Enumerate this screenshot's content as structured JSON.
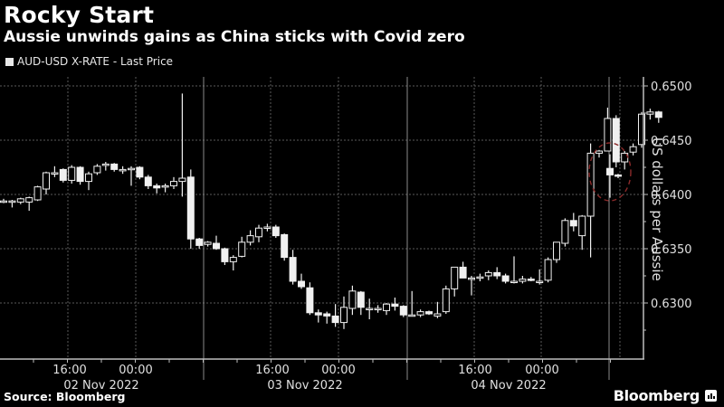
{
  "header": {
    "title": "Rocky Start",
    "subtitle": "Aussie unwinds gains as China sticks with Covid zero"
  },
  "legend": {
    "label": "AUD-USD X-RATE - Last Price",
    "swatch_color": "#e8e8e8"
  },
  "footer": {
    "source": "Source: Bloomberg",
    "brand": "Bloomberg"
  },
  "colors": {
    "background": "#000000",
    "candle": "#f0f0f0",
    "grid": "#5a5a5a",
    "axis": "#bdbdbd",
    "annotation_circle": "#8b2a2a"
  },
  "chart_data": {
    "type": "candlestick",
    "title": "Rocky Start",
    "subtitle": "Aussie unwinds gains as China sticks with Covid zero",
    "series_name": "AUD-USD X-RATE - Last Price",
    "ylabel": "US dollars per Aussie",
    "xlabel": "",
    "ylim": [
      0.6255,
      0.6515
    ],
    "yticks": [
      "0.6500",
      "0.6450",
      "0.6400",
      "0.6350",
      "0.6300"
    ],
    "xticks": [
      {
        "label": "16:00",
        "date": "02 Nov 2022"
      },
      {
        "label": "00:00",
        "date": "02 Nov 2022"
      },
      {
        "label": "16:00",
        "date": "03 Nov 2022"
      },
      {
        "label": "00:00",
        "date": "03 Nov 2022"
      },
      {
        "label": "16:00",
        "date": "04 Nov 2022"
      },
      {
        "label": "00:00",
        "date": "04 Nov 2022"
      }
    ],
    "date_labels": [
      "02 Nov 2022",
      "03 Nov 2022",
      "04 Nov 2022"
    ],
    "grid": true,
    "interval": "hourly",
    "annotation": "dashed red circle around latest candles near 0.6415",
    "candles": [
      [
        0.6394,
        0.6396,
        0.6392,
        0.6394
      ],
      [
        0.6394,
        0.6395,
        0.6388,
        0.6394
      ],
      [
        0.6393,
        0.6397,
        0.6391,
        0.6396
      ],
      [
        0.6393,
        0.6398,
        0.6385,
        0.6397
      ],
      [
        0.6395,
        0.6408,
        0.6394,
        0.6407
      ],
      [
        0.6405,
        0.6421,
        0.64,
        0.642
      ],
      [
        0.642,
        0.6426,
        0.6416,
        0.642
      ],
      [
        0.6423,
        0.6424,
        0.6411,
        0.6413
      ],
      [
        0.6413,
        0.6427,
        0.641,
        0.6425
      ],
      [
        0.6425,
        0.6426,
        0.6409,
        0.6412
      ],
      [
        0.6412,
        0.6421,
        0.6404,
        0.6419
      ],
      [
        0.642,
        0.6428,
        0.6418,
        0.6426
      ],
      [
        0.6427,
        0.643,
        0.6422,
        0.6428
      ],
      [
        0.6428,
        0.6429,
        0.6421,
        0.6423
      ],
      [
        0.6423,
        0.6426,
        0.6419,
        0.6423
      ],
      [
        0.6423,
        0.6426,
        0.6408,
        0.6424
      ],
      [
        0.6425,
        0.6426,
        0.6414,
        0.6416
      ],
      [
        0.6416,
        0.6418,
        0.6405,
        0.6408
      ],
      [
        0.6408,
        0.641,
        0.6401,
        0.6406
      ],
      [
        0.6408,
        0.641,
        0.6402,
        0.6408
      ],
      [
        0.6408,
        0.6416,
        0.6405,
        0.6412
      ],
      [
        0.6412,
        0.6493,
        0.6398,
        0.6415
      ],
      [
        0.6416,
        0.6423,
        0.635,
        0.6359
      ],
      [
        0.6359,
        0.636,
        0.635,
        0.6353
      ],
      [
        0.6354,
        0.6357,
        0.6352,
        0.6356
      ],
      [
        0.6355,
        0.6362,
        0.6349,
        0.635
      ],
      [
        0.635,
        0.6351,
        0.6335,
        0.6338
      ],
      [
        0.6338,
        0.6344,
        0.633,
        0.6342
      ],
      [
        0.6343,
        0.6361,
        0.6342,
        0.6356
      ],
      [
        0.6356,
        0.6367,
        0.6353,
        0.6362
      ],
      [
        0.6361,
        0.6372,
        0.6356,
        0.6369
      ],
      [
        0.6369,
        0.6373,
        0.6366,
        0.637
      ],
      [
        0.637,
        0.6372,
        0.636,
        0.6362
      ],
      [
        0.6363,
        0.6364,
        0.6339,
        0.6342
      ],
      [
        0.6342,
        0.6349,
        0.6317,
        0.632
      ],
      [
        0.632,
        0.6327,
        0.6313,
        0.6315
      ],
      [
        0.6314,
        0.6319,
        0.6289,
        0.6291
      ],
      [
        0.6291,
        0.6294,
        0.6282,
        0.6289
      ],
      [
        0.629,
        0.6292,
        0.6281,
        0.6288
      ],
      [
        0.6288,
        0.6299,
        0.6278,
        0.6282
      ],
      [
        0.6282,
        0.6306,
        0.6276,
        0.6296
      ],
      [
        0.6295,
        0.6316,
        0.6289,
        0.6311
      ],
      [
        0.631,
        0.6311,
        0.6289,
        0.6296
      ],
      [
        0.6295,
        0.6304,
        0.6285,
        0.6295
      ],
      [
        0.6295,
        0.6298,
        0.6291,
        0.6295
      ],
      [
        0.6293,
        0.63,
        0.6289,
        0.6299
      ],
      [
        0.6299,
        0.6305,
        0.6293,
        0.6297
      ],
      [
        0.6297,
        0.6298,
        0.6287,
        0.6289
      ],
      [
        0.6289,
        0.6311,
        0.6288,
        0.6289
      ],
      [
        0.6289,
        0.6294,
        0.6287,
        0.6292
      ],
      [
        0.6292,
        0.6293,
        0.6289,
        0.629
      ],
      [
        0.6288,
        0.6301,
        0.6286,
        0.629
      ],
      [
        0.6292,
        0.6316,
        0.629,
        0.6313
      ],
      [
        0.6313,
        0.6333,
        0.6306,
        0.6333
      ],
      [
        0.6333,
        0.6338,
        0.6326,
        0.6323
      ],
      [
        0.6323,
        0.6325,
        0.6307,
        0.6323
      ],
      [
        0.6323,
        0.6327,
        0.632,
        0.6324
      ],
      [
        0.6325,
        0.633,
        0.6321,
        0.6328
      ],
      [
        0.6328,
        0.6333,
        0.6322,
        0.6325
      ],
      [
        0.6325,
        0.6327,
        0.6318,
        0.632
      ],
      [
        0.632,
        0.6343,
        0.6318,
        0.632
      ],
      [
        0.632,
        0.6325,
        0.6318,
        0.6322
      ],
      [
        0.6322,
        0.6324,
        0.632,
        0.6321
      ],
      [
        0.632,
        0.6331,
        0.6317,
        0.632
      ],
      [
        0.6321,
        0.6342,
        0.6319,
        0.634
      ],
      [
        0.634,
        0.6356,
        0.6337,
        0.6356
      ],
      [
        0.6355,
        0.6378,
        0.6352,
        0.6376
      ],
      [
        0.6376,
        0.6383,
        0.6366,
        0.6371
      ],
      [
        0.6362,
        0.6381,
        0.6349,
        0.638
      ],
      [
        0.638,
        0.6447,
        0.6342,
        0.6438
      ],
      [
        0.6438,
        0.6441,
        0.6434,
        0.644
      ],
      [
        0.644,
        0.648,
        0.644,
        0.647
      ],
      [
        0.647,
        0.6473,
        0.6425,
        0.643
      ],
      [
        0.643,
        0.644,
        0.6423,
        0.6438
      ],
      [
        0.6439,
        0.6447,
        0.6436,
        0.6444
      ],
      [
        0.6446,
        0.6476,
        0.6443,
        0.6474
      ],
      [
        0.6474,
        0.6479,
        0.6469,
        0.6476
      ],
      [
        0.6476,
        0.6477,
        0.6466,
        0.6471
      ],
      [
        0.6424,
        0.6437,
        0.6397,
        0.6418
      ],
      [
        0.6418,
        0.6419,
        0.6415,
        0.6417
      ]
    ]
  },
  "axis": {
    "y_title": "US dollars per Aussie",
    "y_ticks": [
      "0.6500",
      "0.6450",
      "0.6400",
      "0.6350",
      "0.6300"
    ],
    "x_times": [
      "16:00",
      "00:00",
      "16:00",
      "00:00",
      "16:00",
      "00:00"
    ],
    "x_dates": [
      "02 Nov 2022",
      "03 Nov 2022",
      "04 Nov 2022"
    ]
  }
}
